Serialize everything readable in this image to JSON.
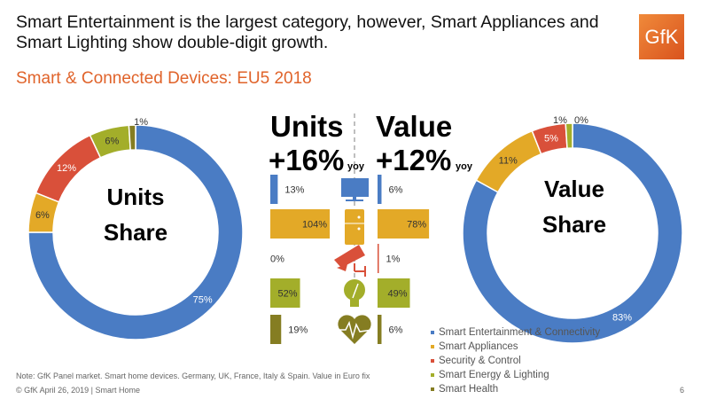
{
  "headline": "Smart Entertainment is the largest category, however, Smart Appliances and Smart Lighting show double-digit growth.",
  "subtitle": "Smart & Connected Devices: EU5 2018",
  "logo_text": "GfK",
  "colors": {
    "entertainment": "#4a7cc4",
    "appliances": "#e3a927",
    "security": "#d9503a",
    "energy": "#a3ae2a",
    "health": "#857d22",
    "accent": "#e0632a"
  },
  "center": {
    "units_title": "Units",
    "units_growth": "+16%",
    "value_title": "Value",
    "value_growth": "+12%",
    "yoy": "yoy",
    "icons": [
      "tv-icon",
      "fridge-icon",
      "security-camera-icon",
      "light-bulb-icon",
      "heart-pulse-icon"
    ]
  },
  "chart_data": [
    {
      "type": "pie",
      "title": "Units Share",
      "title_lines": [
        "Units",
        "Share"
      ],
      "categories": [
        "Smart Entertainment & Connectivity",
        "Smart Appliances",
        "Security & Control",
        "Smart Energy & Lighting",
        "Smart Health"
      ],
      "values": [
        75,
        6,
        12,
        6,
        1
      ],
      "labels": [
        "75%",
        "6%",
        "12%",
        "6%",
        "1%"
      ]
    },
    {
      "type": "bar",
      "title": "Units +16% yoy",
      "categories": [
        "Smart Entertainment & Connectivity",
        "Smart Appliances",
        "Security & Control",
        "Smart Energy & Lighting",
        "Smart Health"
      ],
      "values": [
        13,
        104,
        0,
        52,
        19
      ],
      "labels": [
        "13%",
        "104%",
        "0%",
        "52%",
        "19%"
      ]
    },
    {
      "type": "bar",
      "title": "Value +12% yoy",
      "categories": [
        "Smart Entertainment & Connectivity",
        "Smart Appliances",
        "Security & Control",
        "Smart Energy & Lighting",
        "Smart Health"
      ],
      "values": [
        6,
        78,
        1,
        49,
        6
      ],
      "labels": [
        "6%",
        "78%",
        "1%",
        "49%",
        "6%"
      ]
    },
    {
      "type": "pie",
      "title": "Value Share",
      "title_lines": [
        "Value",
        "Share"
      ],
      "categories": [
        "Smart Entertainment & Connectivity",
        "Smart Appliances",
        "Security & Control",
        "Smart Energy & Lighting",
        "Smart Health"
      ],
      "values": [
        83,
        11,
        5,
        1,
        0
      ],
      "labels": [
        "83%",
        "11%",
        "5%",
        "1%",
        "0%"
      ]
    }
  ],
  "legend": [
    "Smart Entertainment & Connectivity",
    "Smart Appliances",
    "Security & Control",
    "Smart Energy & Lighting",
    "Smart Health"
  ],
  "note": "Note: GfK Panel market. Smart home devices. Germany, UK, France, Italy & Spain. Value in Euro fix",
  "footer": "© GfK April 26, 2019 | Smart Home",
  "page_number": "6"
}
